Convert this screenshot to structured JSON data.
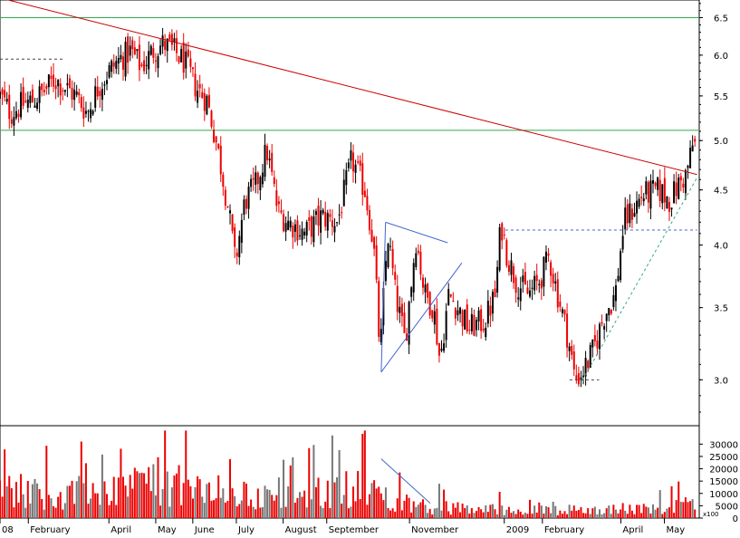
{
  "chart_data": [
    {
      "type": "candlestick",
      "scale": "log",
      "ylim": [
        2.72,
        6.75
      ],
      "y_ticks": [
        "6.5",
        "6.0",
        "5.5",
        "5.0",
        "4.5",
        "4.0",
        "3.5",
        "3.0"
      ],
      "x_labels": [
        "08",
        "February",
        "April",
        "May",
        "June",
        "July",
        "August",
        "September",
        "November",
        "2009",
        "February",
        "April",
        "May"
      ],
      "horizontal_lines": [
        {
          "value": 6.5,
          "color": "#33a852"
        },
        {
          "value": 5.11,
          "color": "#33a852"
        }
      ],
      "trendlines": [
        {
          "from": {
            "x": 0.0,
            "y": 6.78
          },
          "to": {
            "x": 64.0,
            "y": 4.65
          },
          "color": "#cc0000"
        }
      ],
      "annotations": [
        {
          "kind": "triangle",
          "points": [
            [
              35.4,
              4.2
            ],
            [
              35.0,
              3.05
            ],
            [
              42.4,
              3.85
            ]
          ],
          "extra": [
            [
              35.4,
              4.2
            ],
            [
              41.1,
              4.02
            ]
          ],
          "color": "#4466cc"
        },
        {
          "kind": "dashed-support",
          "from": {
            "x": 46.4,
            "y": 4.13
          },
          "to": {
            "x": 64.0,
            "y": 4.13
          },
          "color": "#4466cc"
        },
        {
          "kind": "dashed-trend",
          "from": {
            "x": 53.5,
            "y": 3.0
          },
          "to": {
            "x": 64.0,
            "y": 4.62
          },
          "color": "#33aa88"
        },
        {
          "kind": "dashed-low",
          "from": {
            "x": 52.3,
            "y": 3.0
          },
          "to": {
            "x": 55.0,
            "y": 3.0
          },
          "color": "#444444"
        },
        {
          "kind": "dashed-high",
          "from": {
            "x": 0.0,
            "y": 5.95
          },
          "to": {
            "x": 5.8,
            "y": 5.95
          },
          "color": "#444444"
        }
      ],
      "price_path": [
        [
          0.0,
          5.5
        ],
        [
          1.0,
          5.3
        ],
        [
          2.0,
          5.4
        ],
        [
          3.0,
          5.45
        ],
        [
          4.0,
          5.55
        ],
        [
          5.0,
          5.7
        ],
        [
          6.0,
          5.6
        ],
        [
          7.0,
          5.5
        ],
        [
          8.0,
          5.3
        ],
        [
          9.0,
          5.6
        ],
        [
          10.0,
          5.8
        ],
        [
          11.0,
          5.95
        ],
        [
          12.0,
          6.05
        ],
        [
          13.0,
          5.85
        ],
        [
          14.0,
          6.05
        ],
        [
          15.0,
          6.15
        ],
        [
          16.0,
          6.05
        ],
        [
          17.0,
          5.9
        ],
        [
          18.0,
          5.6
        ],
        [
          19.0,
          5.45
        ],
        [
          20.0,
          4.9
        ],
        [
          21.0,
          4.3
        ],
        [
          21.6,
          3.85
        ],
        [
          22.5,
          4.4
        ],
        [
          23.5,
          4.55
        ],
        [
          24.5,
          4.9
        ],
        [
          25.5,
          4.3
        ],
        [
          26.5,
          4.2
        ],
        [
          28.0,
          4.1
        ],
        [
          29.5,
          4.25
        ],
        [
          31.0,
          4.2
        ],
        [
          32.3,
          4.8
        ],
        [
          33.5,
          4.5
        ],
        [
          34.3,
          4.0
        ],
        [
          34.9,
          3.15
        ],
        [
          35.6,
          4.1
        ],
        [
          36.3,
          3.6
        ],
        [
          37.2,
          3.25
        ],
        [
          38.2,
          4.05
        ],
        [
          39.0,
          3.6
        ],
        [
          39.8,
          3.5
        ],
        [
          40.4,
          3.12
        ],
        [
          41.2,
          3.6
        ],
        [
          42.0,
          3.5
        ],
        [
          43.0,
          3.35
        ],
        [
          44.5,
          3.4
        ],
        [
          45.5,
          3.6
        ],
        [
          46.0,
          4.2
        ],
        [
          46.6,
          3.9
        ],
        [
          47.4,
          3.7
        ],
        [
          48.5,
          3.6
        ],
        [
          49.5,
          3.7
        ],
        [
          50.4,
          3.9
        ],
        [
          51.2,
          3.6
        ],
        [
          52.1,
          3.3
        ],
        [
          52.8,
          3.0
        ],
        [
          53.5,
          3.05
        ],
        [
          54.5,
          3.2
        ],
        [
          55.5,
          3.45
        ],
        [
          56.5,
          3.6
        ],
        [
          57.3,
          4.2
        ],
        [
          58.0,
          4.3
        ],
        [
          59.0,
          4.45
        ],
        [
          60.5,
          4.5
        ],
        [
          61.5,
          4.4
        ],
        [
          62.3,
          4.55
        ],
        [
          63.0,
          4.65
        ],
        [
          63.6,
          4.95
        ]
      ]
    },
    {
      "type": "bar",
      "name": "volume",
      "ylim": [
        0,
        36000
      ],
      "y_ticks": [
        "30000",
        "25000",
        "20000",
        "15000",
        "10000",
        "5000",
        "0"
      ],
      "scale_label": "x100",
      "volume_profile": [
        [
          0,
          14000
        ],
        [
          5,
          9000
        ],
        [
          10,
          13000
        ],
        [
          14,
          16000
        ],
        [
          18,
          12000
        ],
        [
          22,
          10000
        ],
        [
          26,
          8500
        ],
        [
          30,
          11000
        ],
        [
          33,
          14000
        ],
        [
          35,
          10000
        ],
        [
          37,
          7000
        ],
        [
          40,
          4500
        ],
        [
          45,
          3800
        ],
        [
          50,
          3400
        ],
        [
          55,
          3600
        ],
        [
          60,
          4200
        ],
        [
          64,
          6000
        ]
      ],
      "trendline": {
        "from": {
          "x": 35.0,
          "y": 24000
        },
        "to": {
          "x": 39.5,
          "y": 6000
        },
        "color": "#4466cc"
      }
    }
  ]
}
